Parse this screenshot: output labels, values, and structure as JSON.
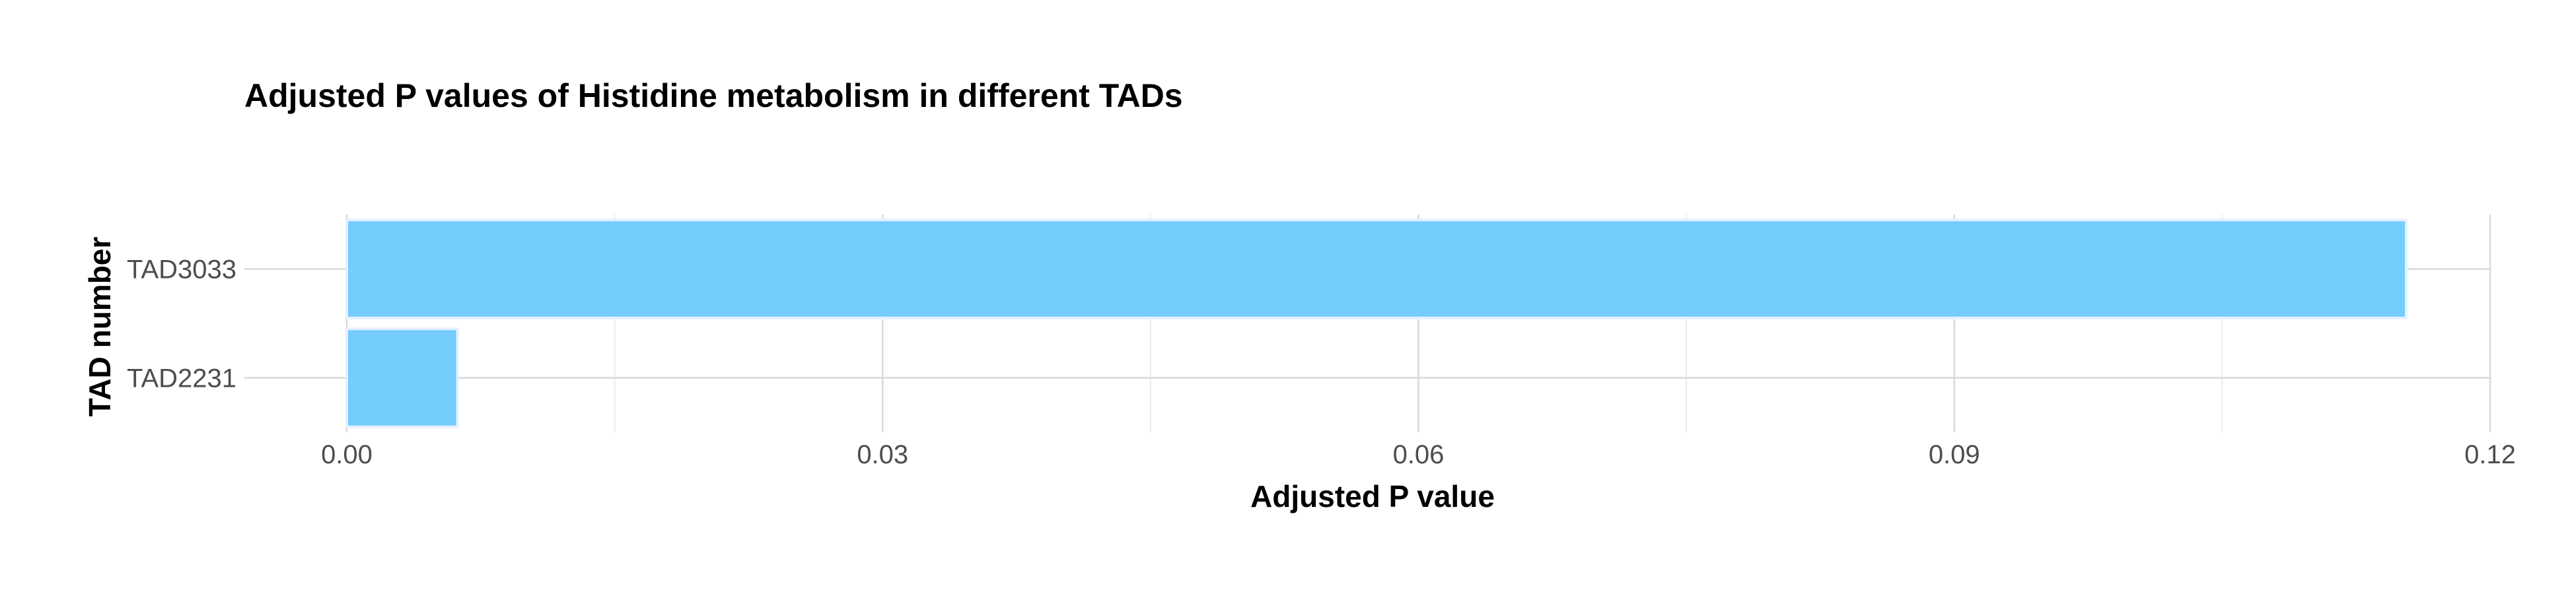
{
  "chart_data": {
    "type": "bar",
    "orientation": "horizontal",
    "title": "Adjusted P values of Histidine metabolism in different TADs",
    "xlabel": "Adjusted P value",
    "ylabel": "TAD number",
    "categories": [
      "TAD3033",
      "TAD2231"
    ],
    "values": [
      0.1153,
      0.0062
    ],
    "xlim": [
      0,
      0.12
    ],
    "xticks": [
      0.0,
      0.03,
      0.06,
      0.09,
      0.12
    ],
    "xtick_labels": [
      "0.00",
      "0.03",
      "0.06",
      "0.09",
      "0.12"
    ],
    "grid": true,
    "bar_color": "#74cdfc",
    "bar_edge_color": "#e6f0ff"
  }
}
